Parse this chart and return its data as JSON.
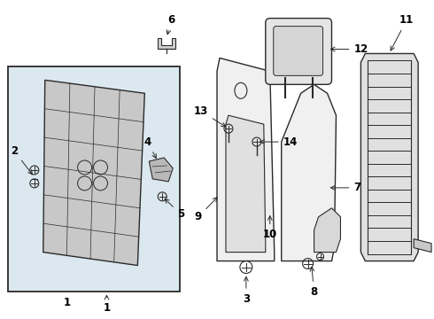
{
  "bg_color": "#ffffff",
  "line_color": "#2a2a2a",
  "fig_width": 4.9,
  "fig_height": 3.6,
  "dpi": 100
}
